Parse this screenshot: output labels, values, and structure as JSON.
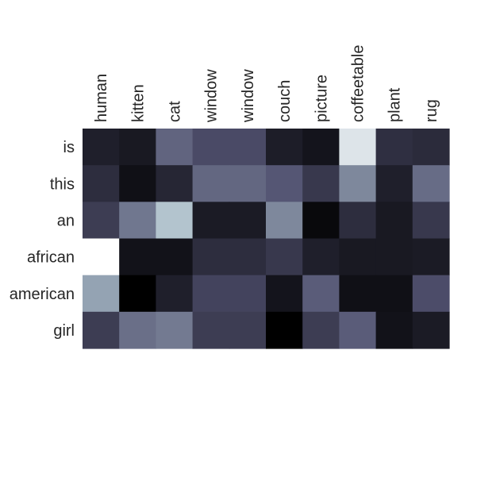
{
  "chart_data": {
    "type": "heatmap",
    "colormap": "bone",
    "value_range": [
      0,
      1
    ],
    "x_categories": [
      "human",
      "kitten",
      "cat",
      "window",
      "window",
      "couch",
      "picture",
      "coffeetable",
      "plant",
      "rug"
    ],
    "y_categories": [
      "is",
      "this",
      "an",
      "african",
      "american",
      "girl"
    ],
    "values": [
      [
        0.14,
        0.11,
        0.43,
        0.33,
        0.33,
        0.13,
        0.09,
        0.9,
        0.21,
        0.19
      ],
      [
        0.2,
        0.07,
        0.17,
        0.44,
        0.44,
        0.38,
        0.25,
        0.56,
        0.14,
        0.46
      ],
      [
        0.27,
        0.5,
        0.78,
        0.12,
        0.12,
        0.56,
        0.04,
        0.2,
        0.11,
        0.25
      ],
      [
        1.0,
        0.08,
        0.08,
        0.2,
        0.2,
        0.25,
        0.14,
        0.11,
        0.11,
        0.12
      ],
      [
        0.66,
        0.0,
        0.14,
        0.3,
        0.3,
        0.09,
        0.4,
        0.07,
        0.07,
        0.34
      ],
      [
        0.27,
        0.47,
        0.51,
        0.27,
        0.27,
        0.0,
        0.27,
        0.4,
        0.08,
        0.12
      ]
    ]
  }
}
